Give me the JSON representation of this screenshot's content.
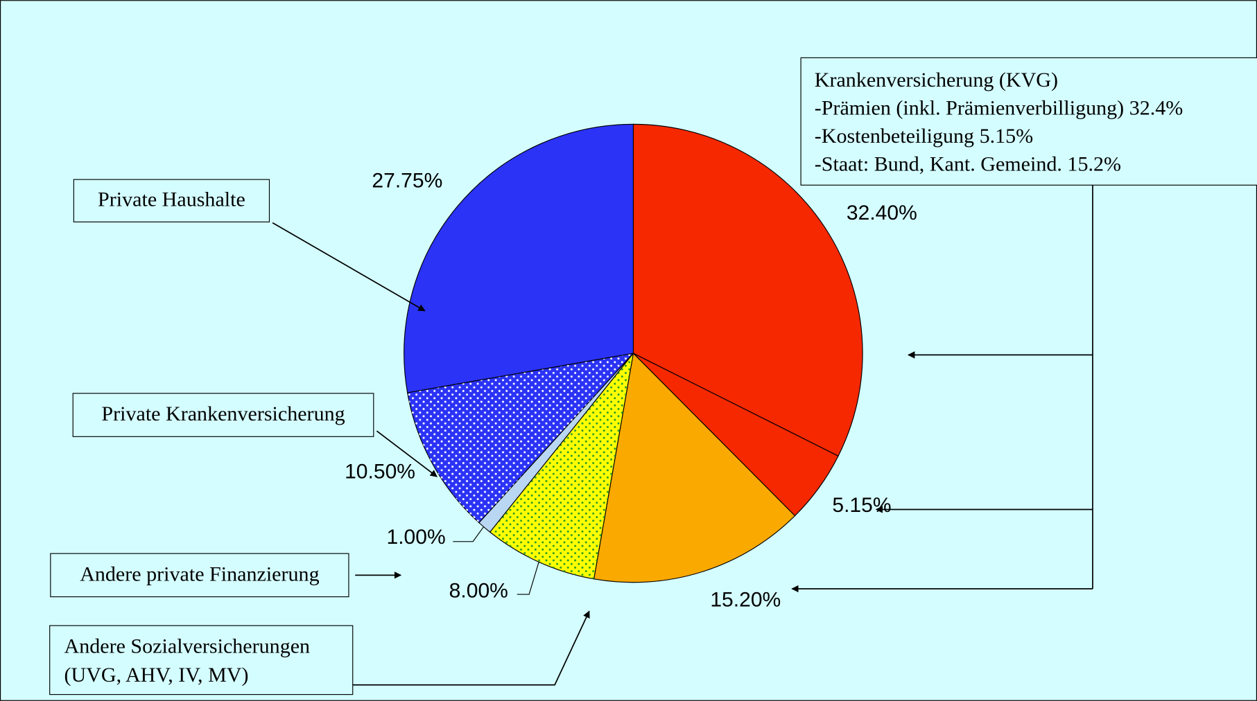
{
  "chart_data": {
    "type": "pie",
    "categories": [
      null,
      null,
      null,
      null,
      null,
      null,
      null
    ],
    "values": [
      32.4,
      5.15,
      15.2,
      8,
      1,
      10.5,
      27.75
    ],
    "value_labels": [
      "32.40%",
      "5.15%",
      "15.20%",
      "8.00%",
      "1.00%",
      "10.50%",
      "27.75%"
    ],
    "colors": [
      "#f52800",
      "#f52800",
      "#f9a900",
      "#ffff00",
      "#b9d6f2",
      "#2b33f6",
      "#2b33f6"
    ],
    "patterns": [
      null,
      null,
      null,
      "dots-green",
      null,
      "dots-white",
      null
    ],
    "annotations": [
      {
        "lines": [
          "Krankenversicherung (KVG)",
          "-Prämien (inkl. Prämienverbilligung) 32.4%",
          "-Kostenbeteiligung 5.15%",
          "-Staat: Bund, Kant. Gemeind. 15.2%"
        ]
      },
      {
        "lines": [
          "Private Haushalte"
        ]
      },
      {
        "lines": [
          "Private Krankenversicherung"
        ]
      },
      {
        "lines": [
          "Andere private Finanzierung"
        ]
      },
      {
        "lines": [
          "Andere Sozialversicherungen",
          "(UVG, AHV, IV, MV)"
        ]
      }
    ]
  }
}
